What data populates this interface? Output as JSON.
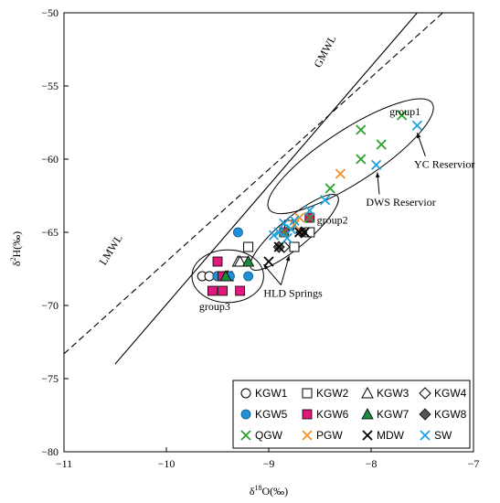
{
  "chart_data": {
    "type": "scatter",
    "xlabel": "δ18O(‰)",
    "ylabel": "δ2H(‰)",
    "xlim": [
      -11,
      -7
    ],
    "ylim": [
      -80,
      -50
    ],
    "x_ticks": [
      "-11",
      "-10",
      "-9",
      "-8",
      "-7"
    ],
    "y_ticks": [
      "-50",
      "-55",
      "-60",
      "-65",
      "-70",
      "-75",
      "-80"
    ],
    "grid": false,
    "legend_position": "bottom-right",
    "lines": [
      {
        "name": "GMWL",
        "style": "solid",
        "points": [
          [
            -10.5,
            -74.0
          ],
          [
            -7.55,
            -50.0
          ]
        ]
      },
      {
        "name": "LMWL",
        "style": "dashed",
        "points": [
          [
            -11.0,
            -73.3
          ],
          [
            -7.3,
            -50.0
          ]
        ]
      }
    ],
    "series": [
      {
        "name": "KGW1",
        "marker": "circle-open",
        "color": "#000000",
        "points": [
          [
            -9.65,
            -68.0
          ],
          [
            -9.58,
            -68.0
          ],
          [
            -9.5,
            -68.0
          ]
        ]
      },
      {
        "name": "KGW2",
        "marker": "square-open",
        "color": "#000000",
        "points": [
          [
            -9.2,
            -66.0
          ],
          [
            -9.25,
            -67.0
          ],
          [
            -9.4,
            -68.0
          ],
          [
            -8.75,
            -66.0
          ],
          [
            -8.6,
            -65.0
          ],
          [
            -8.8,
            -64.5
          ]
        ]
      },
      {
        "name": "KGW3",
        "marker": "triangle-open",
        "color": "#000000",
        "points": [
          [
            -9.3,
            -67.0
          ],
          [
            -9.28,
            -67.0
          ],
          [
            -9.4,
            -68.0
          ]
        ]
      },
      {
        "name": "KGW4",
        "marker": "diamond-open",
        "color": "#000000",
        "points": [
          [
            -8.85,
            -66.0
          ]
        ]
      },
      {
        "name": "KGW5",
        "marker": "circle-filled",
        "color": "#1e90d6",
        "points": [
          [
            -9.3,
            -65.0
          ],
          [
            -9.5,
            -68.0
          ],
          [
            -9.38,
            -68.0
          ],
          [
            -9.2,
            -68.0
          ]
        ]
      },
      {
        "name": "KGW6",
        "marker": "square-filled",
        "color": "#e0197d",
        "points": [
          [
            -9.5,
            -67.0
          ],
          [
            -9.55,
            -69.0
          ],
          [
            -9.45,
            -69.0
          ],
          [
            -9.28,
            -69.0
          ],
          [
            -9.45,
            -68.0
          ],
          [
            -8.85,
            -65.0
          ],
          [
            -8.6,
            -64.0
          ]
        ]
      },
      {
        "name": "KGW7",
        "marker": "triangle-filled",
        "color": "#1a8a3c",
        "points": [
          [
            -9.42,
            -68.0
          ],
          [
            -9.2,
            -67.0
          ]
        ]
      },
      {
        "name": "KGW8",
        "marker": "diamond-filled",
        "color": "#555555",
        "points": [
          [
            -8.9,
            -66.0
          ],
          [
            -8.68,
            -65.0
          ]
        ]
      },
      {
        "name": "QGW",
        "marker": "x",
        "color": "#2ca02c",
        "points": [
          [
            -7.7,
            -57.0
          ],
          [
            -8.1,
            -58.0
          ],
          [
            -7.9,
            -59.0
          ],
          [
            -8.1,
            -60.0
          ],
          [
            -8.4,
            -62.0
          ],
          [
            -8.85,
            -65.0
          ],
          [
            -8.6,
            -64.0
          ]
        ]
      },
      {
        "name": "PGW",
        "marker": "x",
        "color": "#f28e2b",
        "points": [
          [
            -8.3,
            -61.0
          ],
          [
            -8.7,
            -64.0
          ],
          [
            -8.75,
            -64.5
          ]
        ]
      },
      {
        "name": "MDW",
        "marker": "x",
        "color": "#000000",
        "points": [
          [
            -9.0,
            -67.0
          ],
          [
            -8.9,
            -66.0
          ],
          [
            -8.7,
            -65.0
          ],
          [
            -8.65,
            -65.0
          ]
        ]
      },
      {
        "name": "SW",
        "marker": "x",
        "color": "#1da1e0",
        "points": [
          [
            -7.55,
            -57.7
          ],
          [
            -7.95,
            -60.4
          ],
          [
            -8.45,
            -62.8
          ],
          [
            -8.6,
            -63.5
          ],
          [
            -8.75,
            -64.2
          ],
          [
            -8.85,
            -64.4
          ],
          [
            -8.9,
            -65.0
          ],
          [
            -8.82,
            -65.4
          ],
          [
            -8.78,
            -64.8
          ],
          [
            -8.95,
            -65.2
          ]
        ]
      }
    ],
    "groups": [
      {
        "label": "group1",
        "center": [
          -8.2,
          -59.8
        ],
        "rx": 0.95,
        "ry": 1.8,
        "angle": -33
      },
      {
        "label": "group2",
        "center": [
          -8.75,
          -65.0
        ],
        "rx": 0.55,
        "ry": 1.0,
        "angle": -40
      },
      {
        "label": "group3",
        "center": [
          -9.4,
          -68.0
        ],
        "rx": 0.35,
        "ry": 1.8,
        "angle": 0
      }
    ],
    "annotations": [
      {
        "text": "GMWL",
        "kind": "line-label"
      },
      {
        "text": "LMWL",
        "kind": "line-label"
      },
      {
        "text": "group1",
        "kind": "group-label"
      },
      {
        "text": "group2",
        "kind": "group-label"
      },
      {
        "text": "group3",
        "kind": "group-label"
      },
      {
        "text": "HLD Springs",
        "kind": "arrow-label"
      },
      {
        "text": "YC Reservior",
        "kind": "arrow-label"
      },
      {
        "text": "DWS Reservior",
        "kind": "arrow-label"
      }
    ]
  }
}
